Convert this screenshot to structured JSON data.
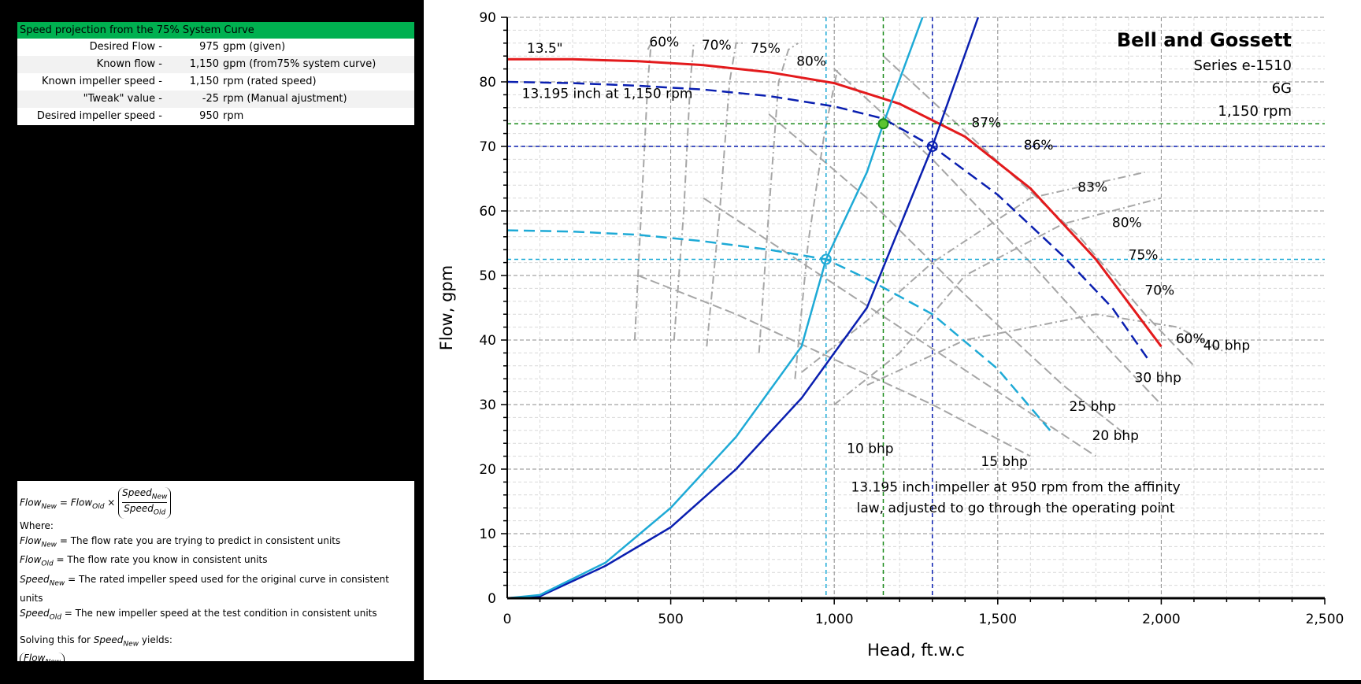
{
  "calc": {
    "title": "Speed projection from the 75% System Curve",
    "rows": [
      {
        "label": "Desired Flow -",
        "value": "975",
        "note": "gpm (given)"
      },
      {
        "label": "Known flow -",
        "value": "1,150",
        "note": "gpm (from75% system curve)"
      },
      {
        "label": "Known impeller speed -",
        "value": "1,150",
        "note": "rpm (rated speed)"
      },
      {
        "label": "\"Tweak\" value -",
        "value": "-25",
        "note": "rpm (Manual ajustment)"
      },
      {
        "label": "Desired impeller speed -",
        "value": "950",
        "note": "rpm"
      }
    ]
  },
  "formula": {
    "flow": "Flow",
    "new": "New",
    "old": "Old",
    "speed": "Speed",
    "where": "Where:",
    "def1": " = The flow rate you are trying to predict in consistent units",
    "def2": " = The flow rate you know in consistent units",
    "def3": " = The rated impeller speed used for the original curve in consistent units",
    "def4": " = The new impeller speed at the test condition in consistent units",
    "solving_pre": "Solving this for ",
    "solving_post": " yields:"
  },
  "chart_data": {
    "type": "line",
    "title": "Bell and Gossett",
    "subtitle_lines": [
      "Series e-1510",
      "6G",
      "1,150 rpm"
    ],
    "xlabel": "Head, ft.w.c",
    "ylabel": "Flow, gpm",
    "xlim": [
      0,
      2500
    ],
    "ylim": [
      0,
      90
    ],
    "xticks": [
      0,
      500,
      1000,
      1500,
      2000,
      2500
    ],
    "xtick_labels": [
      "0",
      "500",
      "1,000",
      "1,500",
      "2,000",
      "2,500"
    ],
    "yticks": [
      0,
      10,
      20,
      30,
      40,
      50,
      60,
      70,
      80,
      90
    ],
    "grid": true,
    "colors": {
      "red": "#e31a1c",
      "navy": "#0a1fb0",
      "cyan": "#1eaad6",
      "green": "#1a8a1a",
      "gray": "#a6a6a6"
    },
    "series": [
      {
        "name": "13.5\"",
        "color": "#e31a1c",
        "style": "solid",
        "x": [
          0,
          200,
          400,
          600,
          800,
          1000,
          1200,
          1400,
          1600,
          1800,
          2000
        ],
        "y": [
          83.5,
          83.5,
          83.2,
          82.6,
          81.5,
          79.8,
          76.6,
          71.5,
          63.5,
          52.5,
          39
        ]
      },
      {
        "name": "13.195 inch at 1,150 rpm",
        "color": "#0a1fb0",
        "style": "dashed",
        "x": [
          0,
          200,
          400,
          600,
          800,
          1000,
          1150,
          1300,
          1500,
          1700,
          1850,
          1960
        ],
        "y": [
          80,
          79.8,
          79.4,
          78.8,
          77.8,
          76.2,
          74.3,
          70,
          62.5,
          53,
          45,
          37
        ]
      },
      {
        "name": "13.195 inch impeller at 950 rpm from the affinity law, adjusted to go through the operating point",
        "color": "#1eaad6",
        "style": "dashed",
        "x": [
          0,
          200,
          400,
          600,
          800,
          975,
          1100,
          1300,
          1500,
          1660
        ],
        "y": [
          57,
          56.8,
          56.3,
          55.3,
          54,
          52.5,
          49.5,
          44,
          35.5,
          26
        ]
      },
      {
        "name": "",
        "color": "#0a1fb0",
        "style": "solid",
        "x": [
          0,
          100,
          300,
          500,
          700,
          900,
          1100,
          1300,
          1440
        ],
        "y": [
          0,
          0.3,
          5,
          11,
          20,
          31,
          45,
          70,
          90
        ]
      },
      {
        "name": "",
        "color": "#1eaad6",
        "style": "solid",
        "x": [
          0,
          100,
          300,
          500,
          700,
          900,
          975,
          1100,
          1150,
          1270
        ],
        "y": [
          0,
          0.5,
          5.5,
          14,
          25,
          39,
          52.5,
          66,
          73.5,
          90
        ]
      }
    ],
    "reference_lines": [
      {
        "axis": "x",
        "value": 975,
        "color": "#1eaad6"
      },
      {
        "axis": "x",
        "value": 1150,
        "color": "#1a8a1a"
      },
      {
        "axis": "x",
        "value": 1300,
        "color": "#0a1fb0"
      },
      {
        "axis": "y",
        "value": 52.5,
        "color": "#1eaad6"
      },
      {
        "axis": "y",
        "value": 73.5,
        "color": "#1a8a1a"
      },
      {
        "axis": "y",
        "value": 70,
        "color": "#0a1fb0"
      }
    ],
    "points": [
      {
        "x": 975,
        "y": 52.5,
        "color": "#1eaad6",
        "filled": false
      },
      {
        "x": 1150,
        "y": 73.5,
        "color": "#1a8a1a",
        "filled": true
      },
      {
        "x": 1300,
        "y": 70,
        "color": "#0a1fb0",
        "filled": false
      }
    ],
    "efficiency_labels": [
      {
        "text": "60%",
        "x": 480,
        "y": 85.5
      },
      {
        "text": "70%",
        "x": 640,
        "y": 85
      },
      {
        "text": "75%",
        "x": 790,
        "y": 84.5
      },
      {
        "text": "80%",
        "x": 930,
        "y": 82.5
      },
      {
        "text": "87%",
        "x": 1465,
        "y": 73
      },
      {
        "text": "86%",
        "x": 1625,
        "y": 69.5
      },
      {
        "text": "83%",
        "x": 1790,
        "y": 63
      },
      {
        "text": "80%",
        "x": 1895,
        "y": 57.5
      },
      {
        "text": "75%",
        "x": 1945,
        "y": 52.5
      },
      {
        "text": "70%",
        "x": 1995,
        "y": 47
      },
      {
        "text": "60%",
        "x": 2090,
        "y": 39.5
      }
    ],
    "bhp_labels": [
      {
        "text": "10 bhp",
        "x": 1110,
        "y": 22.5
      },
      {
        "text": "15 bhp",
        "x": 1520,
        "y": 20.5
      },
      {
        "text": "20 bhp",
        "x": 1860,
        "y": 24.5
      },
      {
        "text": "25 bhp",
        "x": 1790,
        "y": 29
      },
      {
        "text": "30 bhp",
        "x": 1990,
        "y": 33.5
      },
      {
        "text": "40 bhp",
        "x": 2200,
        "y": 38.5
      }
    ],
    "efficiency_curves": [
      {
        "x": [
          390,
          410,
          430,
          440,
          430
        ],
        "y": [
          40,
          60,
          80,
          86,
          85
        ]
      },
      {
        "x": [
          510,
          540,
          560,
          570,
          575
        ],
        "y": [
          40,
          60,
          80,
          86,
          86
        ]
      },
      {
        "x": [
          610,
          650,
          680,
          700,
          720
        ],
        "y": [
          39,
          60,
          80,
          86,
          86
        ]
      },
      {
        "x": [
          770,
          800,
          830,
          860,
          890
        ],
        "y": [
          38,
          60,
          80,
          85,
          86
        ]
      },
      {
        "x": [
          880,
          920,
          970,
          1010
        ],
        "y": [
          34,
          55,
          72,
          82
        ]
      }
    ],
    "bhp_curves": [
      {
        "x": [
          400,
          700,
          1000,
          1300,
          1600
        ],
        "y": [
          50,
          44,
          37,
          30,
          22
        ]
      },
      {
        "x": [
          600,
          900,
          1200,
          1500,
          1800
        ],
        "y": [
          62,
          52,
          42,
          32,
          22
        ]
      },
      {
        "x": [
          800,
          1100,
          1400,
          1700,
          1900
        ],
        "y": [
          75,
          62,
          47,
          33,
          25
        ]
      },
      {
        "x": [
          1000,
          1300,
          1600,
          1850,
          2000
        ],
        "y": [
          82,
          68,
          52,
          38,
          30
        ]
      },
      {
        "x": [
          1150,
          1450,
          1750,
          1950,
          2100
        ],
        "y": [
          84,
          70,
          56,
          44,
          36
        ]
      }
    ],
    "iso_efficiency": [
      {
        "x": [
          1000,
          1200,
          1400,
          1700,
          2000
        ],
        "y": [
          30,
          38,
          50,
          58,
          62
        ]
      },
      {
        "x": [
          900,
          1100,
          1300,
          1600,
          1950
        ],
        "y": [
          35,
          43,
          52,
          62,
          66
        ]
      },
      {
        "x": [
          1100,
          1400,
          1800,
          2050,
          2200
        ],
        "y": [
          33,
          40,
          44,
          42,
          38
        ]
      }
    ],
    "annotations": [
      {
        "text": "13.5\"",
        "x": 60,
        "y": 84.5
      },
      {
        "text": "13.195 inch at 1,150 rpm",
        "x": 45,
        "y": 77.5
      },
      {
        "text": "13.195 inch impeller at 950 rpm from the affinity",
        "x": 1555,
        "y": 16.5,
        "anchor": "middle"
      },
      {
        "text": "law, adjusted to go through the operating point",
        "x": 1555,
        "y": 13.3,
        "anchor": "middle"
      }
    ]
  }
}
